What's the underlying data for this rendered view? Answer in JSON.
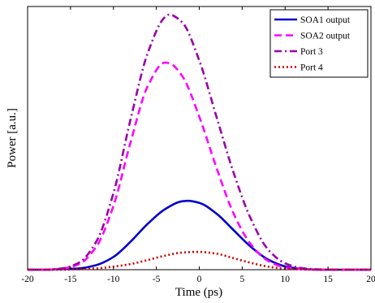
{
  "chart_data": {
    "type": "line",
    "title": "",
    "xlabel": "Time (ps)",
    "ylabel": "Power [a.u.]",
    "xlim": [
      -20,
      20
    ],
    "ylim": [
      0,
      1.0
    ],
    "x_ticks": [
      -20,
      -15,
      -10,
      -5,
      0,
      5,
      10,
      15,
      20
    ],
    "x_tick_labels": [
      "-20",
      "-15",
      "-10",
      "-5",
      "0",
      "5",
      "10",
      "15",
      "20"
    ],
    "y_ticks_labeled": false,
    "grid": false,
    "legend_position": "top-right",
    "series": [
      {
        "name": "SOA1 output",
        "color": "#0000cc",
        "line_style": "solid",
        "x": [
          -20,
          -18,
          -16,
          -14,
          -12,
          -10,
          -8,
          -6,
          -4,
          -2,
          -1.3,
          0,
          2,
          4,
          6,
          8,
          10,
          12,
          14,
          16,
          18,
          20
        ],
        "y": [
          0,
          0,
          0.002,
          0.005,
          0.018,
          0.05,
          0.11,
          0.18,
          0.237,
          0.268,
          0.27,
          0.262,
          0.22,
          0.155,
          0.09,
          0.04,
          0.013,
          0.003,
          0,
          0,
          0,
          0
        ]
      },
      {
        "name": "SOA2 output",
        "color": "#ff00ff",
        "line_style": "dashed",
        "x": [
          -20,
          -18,
          -16,
          -14,
          -12,
          -10,
          -8,
          -6,
          -4,
          -3.5,
          -2,
          0,
          2,
          4,
          6,
          8,
          10,
          12,
          14,
          16,
          18,
          20
        ],
        "y": [
          0,
          0,
          0.004,
          0.022,
          0.09,
          0.25,
          0.5,
          0.72,
          0.812,
          0.81,
          0.76,
          0.6,
          0.4,
          0.22,
          0.1,
          0.035,
          0.009,
          0.002,
          0,
          0,
          0,
          0
        ]
      },
      {
        "name": "Port 3",
        "color": "#9900aa",
        "line_style": "dash-dot",
        "x": [
          -20,
          -18,
          -16,
          -14,
          -12,
          -10,
          -8,
          -6,
          -4,
          -3.5,
          -2,
          0,
          2,
          4,
          6,
          8,
          10,
          12,
          14,
          16,
          18,
          20
        ],
        "y": [
          0,
          0,
          0.005,
          0.028,
          0.11,
          0.3,
          0.59,
          0.85,
          0.99,
          1.0,
          0.97,
          0.82,
          0.6,
          0.38,
          0.2,
          0.08,
          0.025,
          0.006,
          0.001,
          0,
          0,
          0
        ]
      },
      {
        "name": "Port 4",
        "color": "#cc0000",
        "line_style": "dotted",
        "x": [
          -20,
          -16,
          -14,
          -12,
          -10,
          -8,
          -6,
          -4,
          -2,
          -0.3,
          2,
          4,
          6,
          8,
          10,
          12,
          14,
          16,
          20
        ],
        "y": [
          0,
          0,
          0.002,
          0.005,
          0.012,
          0.022,
          0.038,
          0.055,
          0.067,
          0.07,
          0.063,
          0.045,
          0.027,
          0.012,
          0.004,
          0.001,
          0,
          0,
          0
        ]
      }
    ]
  }
}
